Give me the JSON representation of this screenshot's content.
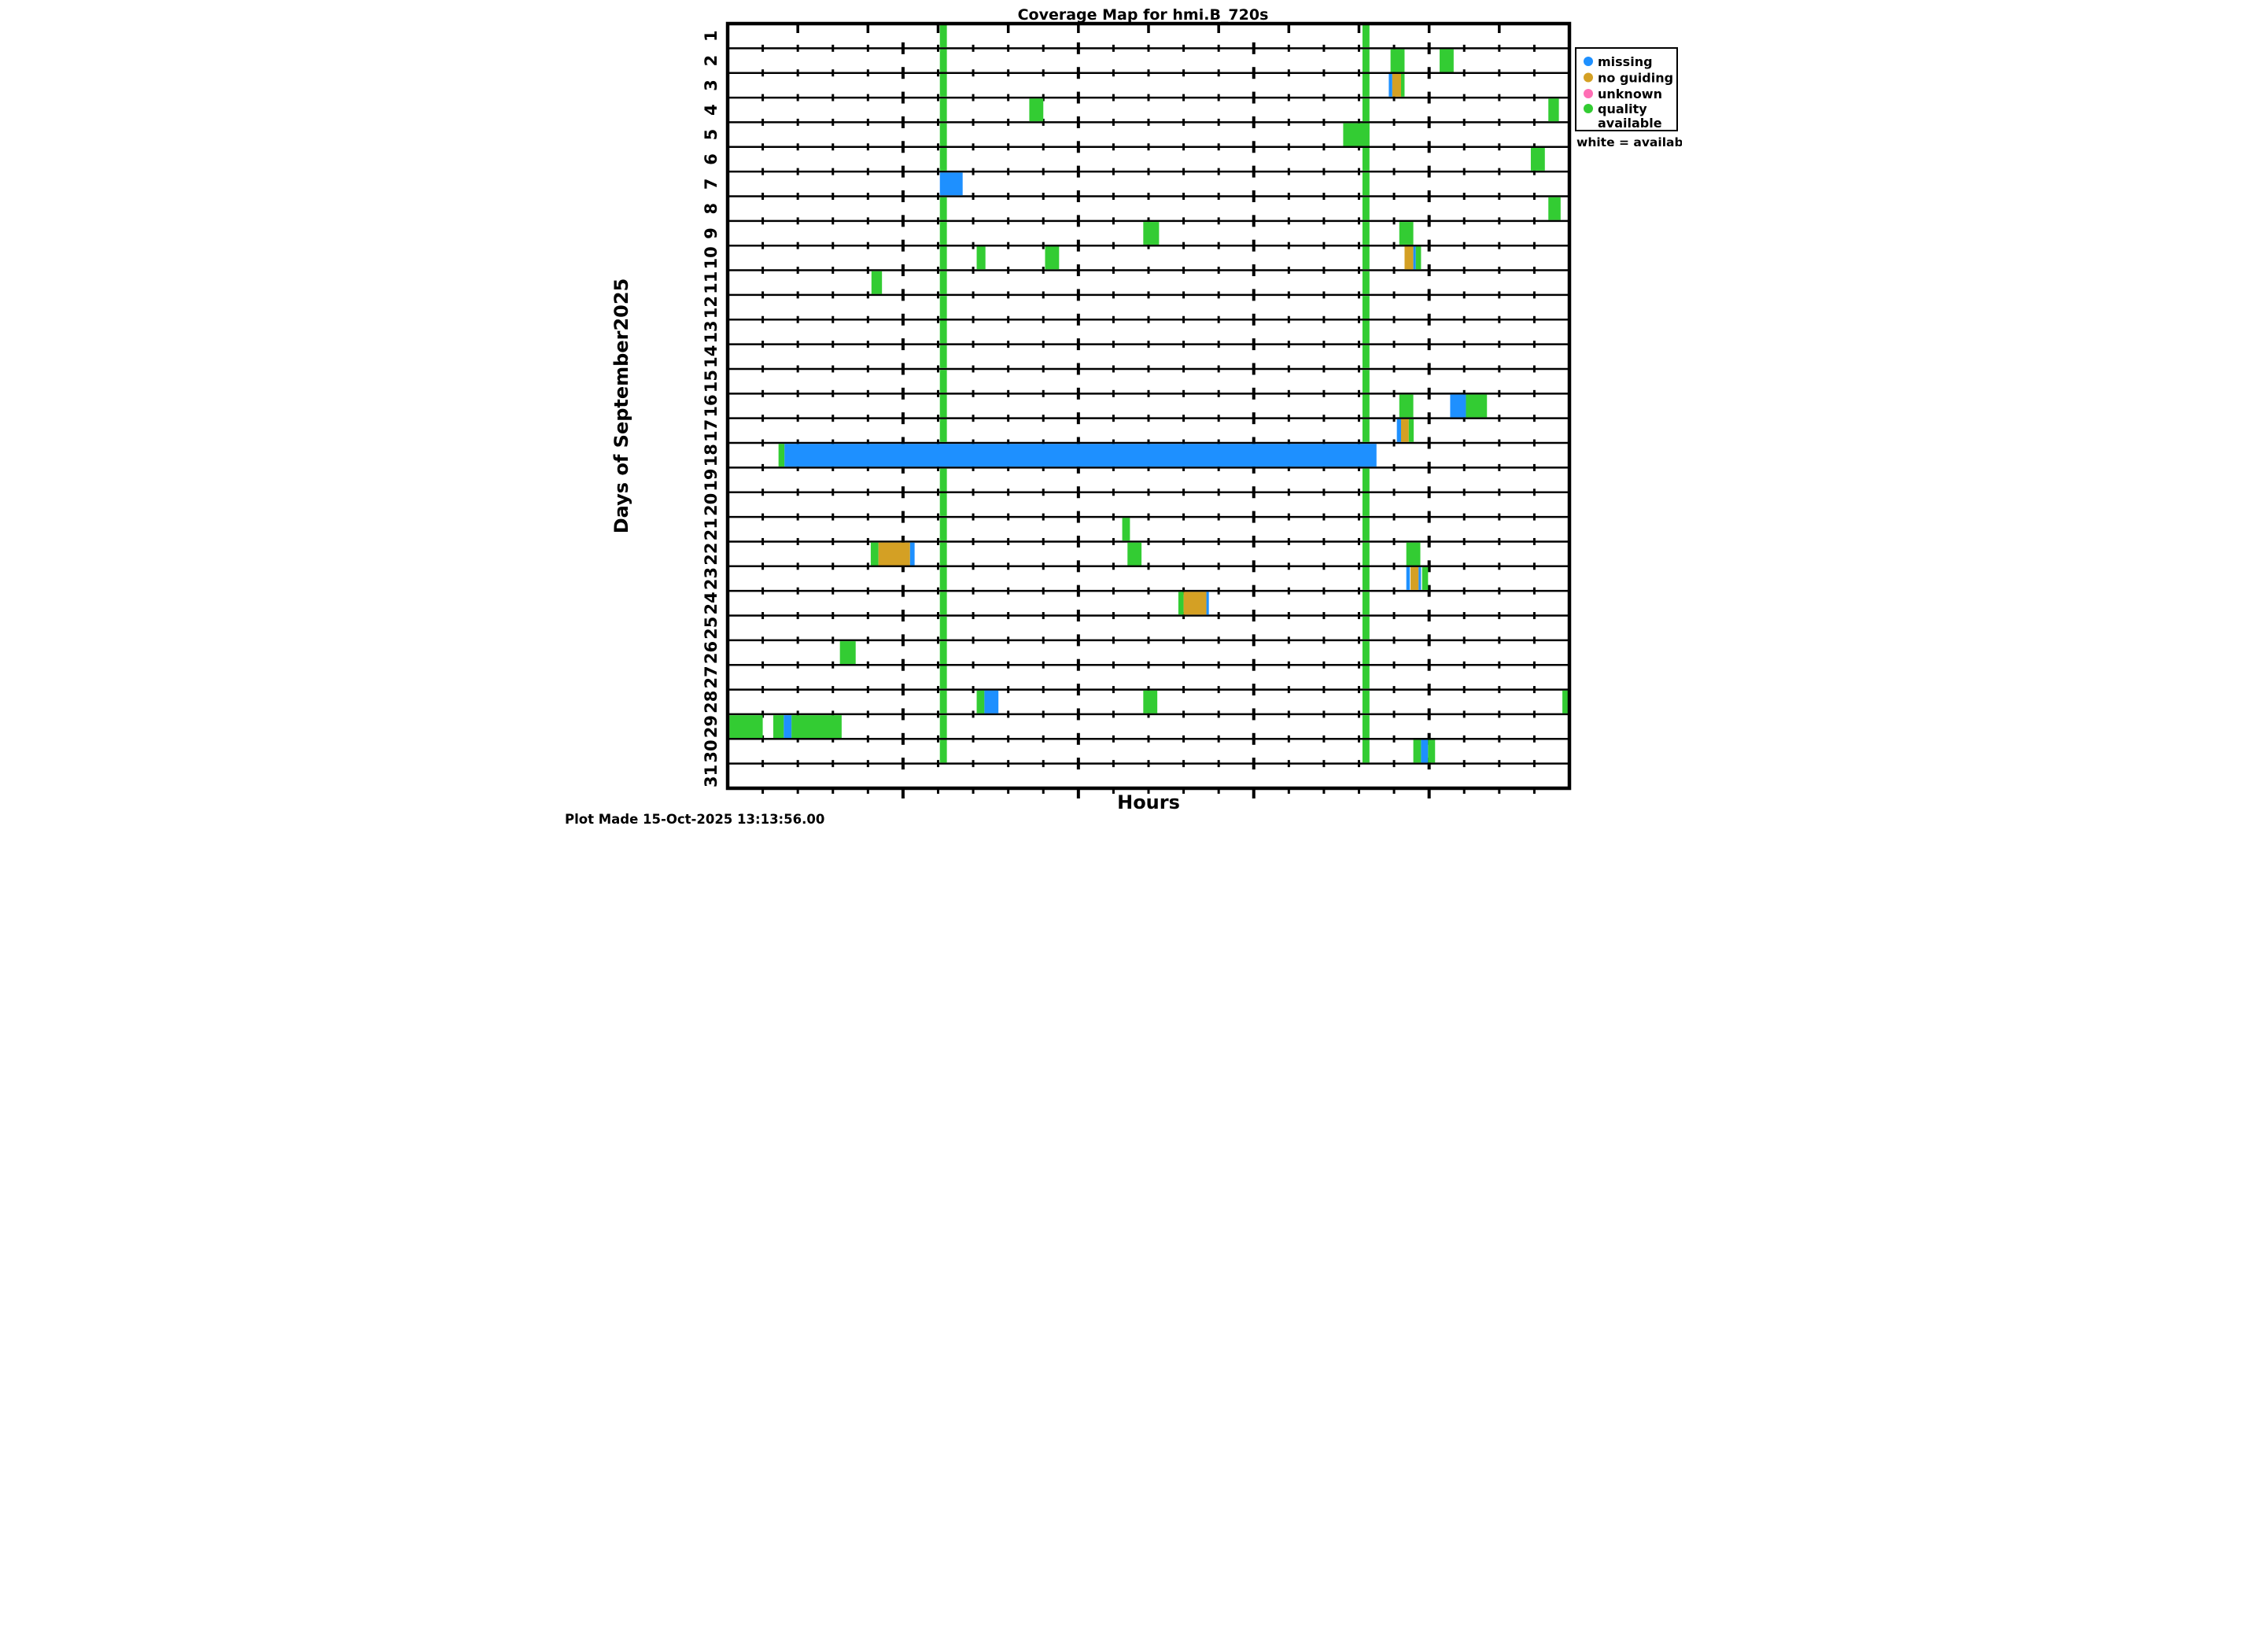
{
  "title": "Coverage Map for hmi.B_720s",
  "axes": {
    "x_title": "Hours",
    "y_title": "Days of September2025"
  },
  "footer": "Plot Made 15-Oct-2025 13:13:56.00",
  "legend": {
    "items": [
      {
        "label": "missing",
        "status": "missing",
        "color": "#1E90FF"
      },
      {
        "label": "no guiding",
        "status": "no_guiding",
        "color": "#D4A024"
      },
      {
        "label": "unknown",
        "status": "unknown",
        "color": "#FF6EB4"
      },
      {
        "label": "quality",
        "label_line2": "available",
        "label_full": "quality available",
        "status": "quality_available",
        "color": "#33CC33"
      }
    ],
    "note": "white = available"
  },
  "chart_data": {
    "type": "heatmap",
    "title": "Coverage Map for hmi.B_720s",
    "xlabel": "Hours",
    "ylabel": "Days of September2025",
    "x_range_hours": [
      0,
      24
    ],
    "days": [
      1,
      2,
      3,
      4,
      5,
      6,
      7,
      8,
      9,
      10,
      11,
      12,
      13,
      14,
      15,
      16,
      17,
      18,
      19,
      20,
      21,
      22,
      23,
      24,
      25,
      26,
      27,
      28,
      29,
      30,
      31
    ],
    "status_colors": {
      "missing": "#1E90FF",
      "no_guiding": "#D4A024",
      "unknown": "#FF6EB4",
      "quality_available": "#33CC33",
      "available": "#FFFFFF"
    },
    "layout": {
      "grid": "horizontal-day-rows",
      "legend_position": "outside-right-top",
      "row_minor_tick_interval_hours": 1,
      "row_major_tick_interval_hours": 5,
      "top_axis_tick_interval_hours": 2,
      "bottom_axis_tick_interval_hours": 1
    },
    "daily_columns": [
      {
        "start": 6.05,
        "end": 6.25,
        "status": "quality_available",
        "days": [
          1,
          2,
          3,
          4,
          5,
          6,
          8,
          9,
          10,
          11,
          12,
          13,
          14,
          15,
          16,
          17,
          19,
          20,
          21,
          22,
          23,
          24,
          25,
          26,
          27,
          28,
          29,
          30
        ]
      },
      {
        "start": 18.1,
        "end": 18.3,
        "status": "quality_available",
        "days": [
          1,
          2,
          3,
          4,
          5,
          6,
          7,
          8,
          9,
          10,
          11,
          12,
          13,
          14,
          15,
          16,
          17,
          19,
          20,
          21,
          22,
          23,
          24,
          25,
          26,
          27,
          28,
          29,
          30
        ]
      }
    ],
    "marks": [
      {
        "day": 2,
        "start": 18.9,
        "end": 19.3,
        "status": "quality_available"
      },
      {
        "day": 2,
        "start": 20.3,
        "end": 20.7,
        "status": "quality_available"
      },
      {
        "day": 3,
        "start": 18.85,
        "end": 18.95,
        "status": "missing"
      },
      {
        "day": 3,
        "start": 18.95,
        "end": 19.2,
        "status": "no_guiding"
      },
      {
        "day": 3,
        "start": 19.2,
        "end": 19.3,
        "status": "quality_available"
      },
      {
        "day": 4,
        "start": 8.6,
        "end": 9.0,
        "status": "quality_available"
      },
      {
        "day": 4,
        "start": 23.4,
        "end": 23.7,
        "status": "quality_available"
      },
      {
        "day": 5,
        "start": 17.55,
        "end": 18.3,
        "status": "quality_available"
      },
      {
        "day": 6,
        "start": 22.9,
        "end": 23.3,
        "status": "quality_available"
      },
      {
        "day": 7,
        "start": 6.05,
        "end": 6.7,
        "status": "missing"
      },
      {
        "day": 8,
        "start": 23.4,
        "end": 23.75,
        "status": "quality_available"
      },
      {
        "day": 9,
        "start": 11.85,
        "end": 12.3,
        "status": "quality_available"
      },
      {
        "day": 9,
        "start": 19.15,
        "end": 19.55,
        "status": "quality_available"
      },
      {
        "day": 10,
        "start": 7.1,
        "end": 7.35,
        "status": "quality_available"
      },
      {
        "day": 10,
        "start": 9.05,
        "end": 9.45,
        "status": "quality_available"
      },
      {
        "day": 10,
        "start": 19.3,
        "end": 19.55,
        "status": "no_guiding"
      },
      {
        "day": 10,
        "start": 19.55,
        "end": 19.62,
        "status": "missing"
      },
      {
        "day": 10,
        "start": 19.62,
        "end": 19.77,
        "status": "quality_available"
      },
      {
        "day": 11,
        "start": 4.1,
        "end": 4.4,
        "status": "quality_available"
      },
      {
        "day": 16,
        "start": 19.15,
        "end": 19.55,
        "status": "quality_available"
      },
      {
        "day": 16,
        "start": 20.6,
        "end": 21.05,
        "status": "missing"
      },
      {
        "day": 16,
        "start": 21.05,
        "end": 21.65,
        "status": "quality_available"
      },
      {
        "day": 17,
        "start": 19.08,
        "end": 19.2,
        "status": "missing"
      },
      {
        "day": 17,
        "start": 19.2,
        "end": 19.42,
        "status": "no_guiding"
      },
      {
        "day": 17,
        "start": 19.42,
        "end": 19.56,
        "status": "quality_available"
      },
      {
        "day": 18,
        "start": 1.45,
        "end": 1.62,
        "status": "quality_available"
      },
      {
        "day": 18,
        "start": 1.62,
        "end": 18.5,
        "status": "missing"
      },
      {
        "day": 21,
        "start": 11.25,
        "end": 11.47,
        "status": "quality_available"
      },
      {
        "day": 22,
        "start": 4.08,
        "end": 4.3,
        "status": "quality_available"
      },
      {
        "day": 22,
        "start": 4.3,
        "end": 5.2,
        "status": "no_guiding"
      },
      {
        "day": 22,
        "start": 5.2,
        "end": 5.33,
        "status": "missing"
      },
      {
        "day": 22,
        "start": 11.4,
        "end": 11.8,
        "status": "quality_available"
      },
      {
        "day": 22,
        "start": 19.35,
        "end": 19.75,
        "status": "quality_available"
      },
      {
        "day": 23,
        "start": 19.35,
        "end": 19.45,
        "status": "missing"
      },
      {
        "day": 23,
        "start": 19.47,
        "end": 19.7,
        "status": "no_guiding"
      },
      {
        "day": 23,
        "start": 19.7,
        "end": 19.77,
        "status": "missing"
      },
      {
        "day": 23,
        "start": 19.8,
        "end": 19.97,
        "status": "quality_available"
      },
      {
        "day": 24,
        "start": 12.85,
        "end": 13.0,
        "status": "quality_available"
      },
      {
        "day": 24,
        "start": 13.0,
        "end": 13.65,
        "status": "no_guiding"
      },
      {
        "day": 24,
        "start": 13.65,
        "end": 13.72,
        "status": "missing"
      },
      {
        "day": 26,
        "start": 3.2,
        "end": 3.65,
        "status": "quality_available"
      },
      {
        "day": 28,
        "start": 7.1,
        "end": 7.32,
        "status": "quality_available"
      },
      {
        "day": 28,
        "start": 7.32,
        "end": 7.72,
        "status": "missing"
      },
      {
        "day": 28,
        "start": 11.85,
        "end": 12.25,
        "status": "quality_available"
      },
      {
        "day": 28,
        "start": 23.8,
        "end": 24.0,
        "status": "quality_available"
      },
      {
        "day": 29,
        "start": 0.05,
        "end": 1.0,
        "status": "quality_available"
      },
      {
        "day": 29,
        "start": 1.3,
        "end": 1.6,
        "status": "quality_available"
      },
      {
        "day": 29,
        "start": 1.6,
        "end": 1.82,
        "status": "missing"
      },
      {
        "day": 29,
        "start": 1.82,
        "end": 3.25,
        "status": "quality_available"
      },
      {
        "day": 30,
        "start": 19.55,
        "end": 19.77,
        "status": "quality_available"
      },
      {
        "day": 30,
        "start": 19.77,
        "end": 19.97,
        "status": "missing"
      },
      {
        "day": 30,
        "start": 19.97,
        "end": 20.17,
        "status": "quality_available"
      }
    ]
  }
}
